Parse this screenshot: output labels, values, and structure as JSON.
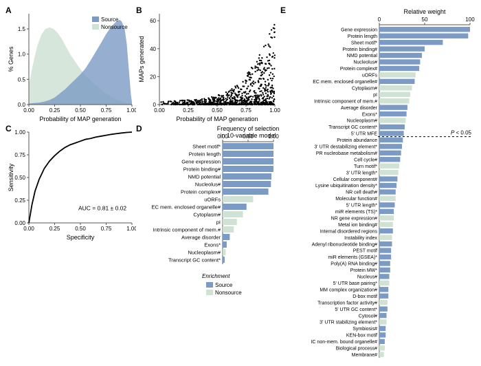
{
  "colors": {
    "source": "#7c9bc4",
    "nonsource": "#cfe2d4",
    "axis": "#555555",
    "text": "#000000",
    "grid": "#e0e0e0",
    "scatter": "#000000",
    "dash": "#000000",
    "bg": "#ffffff"
  },
  "panelLabels": {
    "A": "A",
    "B": "B",
    "C": "C",
    "D": "D",
    "E": "E"
  },
  "panelA": {
    "type": "area",
    "xLabel": "Probability of MAP generation",
    "yLabel": "% Genes",
    "xlim": [
      0,
      1
    ],
    "ylim": [
      0,
      1.8
    ],
    "xticks": [
      0,
      0.25,
      0.5,
      0.75,
      1.0
    ],
    "yticks": [
      0,
      0.5,
      1.0,
      1.5
    ],
    "legend": {
      "source": "Source",
      "nonsource": "Nonsource"
    },
    "sourceCurve": [
      [
        0.0,
        0.02
      ],
      [
        0.05,
        0.03
      ],
      [
        0.1,
        0.04
      ],
      [
        0.15,
        0.06
      ],
      [
        0.2,
        0.09
      ],
      [
        0.25,
        0.14
      ],
      [
        0.3,
        0.22
      ],
      [
        0.35,
        0.3
      ],
      [
        0.4,
        0.4
      ],
      [
        0.45,
        0.5
      ],
      [
        0.5,
        0.6
      ],
      [
        0.55,
        0.72
      ],
      [
        0.6,
        0.88
      ],
      [
        0.65,
        1.05
      ],
      [
        0.7,
        1.22
      ],
      [
        0.75,
        1.4
      ],
      [
        0.8,
        1.55
      ],
      [
        0.85,
        1.65
      ],
      [
        0.88,
        1.68
      ],
      [
        0.9,
        1.65
      ],
      [
        0.93,
        1.5
      ],
      [
        0.95,
        1.2
      ],
      [
        0.97,
        0.7
      ],
      [
        0.99,
        0.2
      ],
      [
        1.0,
        0.05
      ]
    ],
    "nonsourceCurve": [
      [
        0.0,
        0.4
      ],
      [
        0.04,
        0.8
      ],
      [
        0.08,
        1.15
      ],
      [
        0.12,
        1.38
      ],
      [
        0.16,
        1.5
      ],
      [
        0.2,
        1.53
      ],
      [
        0.24,
        1.5
      ],
      [
        0.28,
        1.42
      ],
      [
        0.32,
        1.3
      ],
      [
        0.36,
        1.15
      ],
      [
        0.4,
        1.0
      ],
      [
        0.45,
        0.85
      ],
      [
        0.5,
        0.7
      ],
      [
        0.55,
        0.58
      ],
      [
        0.6,
        0.48
      ],
      [
        0.65,
        0.38
      ],
      [
        0.7,
        0.3
      ],
      [
        0.75,
        0.22
      ],
      [
        0.8,
        0.15
      ],
      [
        0.85,
        0.1
      ],
      [
        0.9,
        0.06
      ],
      [
        0.95,
        0.03
      ],
      [
        1.0,
        0.01
      ]
    ]
  },
  "panelB": {
    "type": "scatter",
    "xLabel": "Probability of MAP generation",
    "yLabel": "MAPs generated",
    "xlim": [
      0,
      1
    ],
    "ylim": [
      0,
      65
    ],
    "xticks": [
      0,
      0.25,
      0.5,
      0.75,
      1.0
    ],
    "yticks": [
      0,
      20,
      40,
      60
    ],
    "marker_size": 1.2,
    "nRandom": 900
  },
  "panelC": {
    "type": "line",
    "xLabel": "Specificity",
    "yLabel": "Sensitivity",
    "xlim": [
      0,
      1
    ],
    "ylim": [
      0,
      1
    ],
    "xticks": [
      0,
      0.25,
      0.5,
      0.75,
      1.0
    ],
    "yticks": [
      0,
      0.25,
      0.5,
      0.75,
      1.0
    ],
    "aucText": "AUC = 0.81 ± 0.02",
    "curve": [
      [
        0.0,
        0.0
      ],
      [
        0.03,
        0.2
      ],
      [
        0.06,
        0.35
      ],
      [
        0.1,
        0.48
      ],
      [
        0.15,
        0.6
      ],
      [
        0.2,
        0.68
      ],
      [
        0.25,
        0.74
      ],
      [
        0.3,
        0.79
      ],
      [
        0.35,
        0.83
      ],
      [
        0.4,
        0.86
      ],
      [
        0.45,
        0.88
      ],
      [
        0.5,
        0.9
      ],
      [
        0.55,
        0.92
      ],
      [
        0.6,
        0.93
      ],
      [
        0.65,
        0.945
      ],
      [
        0.7,
        0.955
      ],
      [
        0.75,
        0.965
      ],
      [
        0.8,
        0.975
      ],
      [
        0.85,
        0.983
      ],
      [
        0.9,
        0.99
      ],
      [
        0.95,
        0.996
      ],
      [
        1.0,
        1.0
      ]
    ]
  },
  "panelD": {
    "type": "hbar",
    "xLabel": "Frequency of selection\nin 10-variable model",
    "xlim": [
      0,
      1
    ],
    "xticks": [
      0,
      0.5,
      1.0
    ],
    "bars": [
      {
        "label": "Sheet motif*",
        "v": 1.0,
        "c": "source"
      },
      {
        "label": "Protein length",
        "v": 1.0,
        "c": "source"
      },
      {
        "label": "Gene expression",
        "v": 1.0,
        "c": "source"
      },
      {
        "label": "Protein binding#",
        "v": 1.0,
        "c": "source"
      },
      {
        "label": "NMD potential",
        "v": 0.96,
        "c": "source"
      },
      {
        "label": "Nucleolus#",
        "v": 0.95,
        "c": "source"
      },
      {
        "label": "Protein complex#",
        "v": 0.9,
        "c": "source"
      },
      {
        "label": "uORFs",
        "v": 0.6,
        "c": "nonsource"
      },
      {
        "label": "EC mem. enclosed organelle#",
        "v": 0.47,
        "c": "source"
      },
      {
        "label": "Cytoplasm#",
        "v": 0.4,
        "c": "nonsource"
      },
      {
        "label": "pI",
        "v": 0.28,
        "c": "nonsource"
      },
      {
        "label": "Intrinsic component of mem.#",
        "v": 0.22,
        "c": "nonsource"
      },
      {
        "label": "Average disorder",
        "v": 0.14,
        "c": "source"
      },
      {
        "label": "Exons*",
        "v": 0.08,
        "c": "source"
      },
      {
        "label": "Nucleoplasm#",
        "v": 0.06,
        "c": "nonsource"
      },
      {
        "label": "Transcript GC content*",
        "v": 0.04,
        "c": "source"
      }
    ]
  },
  "panelE": {
    "type": "hbar",
    "xLabel": "Relative weight",
    "xlim": [
      0,
      100
    ],
    "xticks": [
      0,
      50,
      100
    ],
    "pLabel": "P < 0.05",
    "pCutIndex": 17,
    "bars": [
      {
        "label": "Gene expression",
        "v": 100,
        "c": "source"
      },
      {
        "label": "Protein length",
        "v": 98,
        "c": "source"
      },
      {
        "label": "Sheet motif*",
        "v": 70,
        "c": "source"
      },
      {
        "label": "Protein binding#",
        "v": 50,
        "c": "source"
      },
      {
        "label": "NMD potential",
        "v": 47,
        "c": "source"
      },
      {
        "label": "Nucleolus#",
        "v": 45,
        "c": "source"
      },
      {
        "label": "Protein complex#",
        "v": 44,
        "c": "source"
      },
      {
        "label": "uORFs",
        "v": 40,
        "c": "nonsource"
      },
      {
        "label": "EC mem. enclosed organelle#",
        "v": 39,
        "c": "source"
      },
      {
        "label": "Cytoplasm#",
        "v": 36,
        "c": "nonsource"
      },
      {
        "label": "pI",
        "v": 34,
        "c": "nonsource"
      },
      {
        "label": "Intrinsic component of mem.#",
        "v": 33,
        "c": "nonsource"
      },
      {
        "label": "Average disorder",
        "v": 31,
        "c": "source"
      },
      {
        "label": "Exons*",
        "v": 30,
        "c": "source"
      },
      {
        "label": "Nucleoplasm#",
        "v": 29,
        "c": "nonsource"
      },
      {
        "label": "Transcript GC content*",
        "v": 28,
        "c": "source"
      },
      {
        "label": "5' UTR MFE",
        "v": 27,
        "c": "source"
      },
      {
        "label": "Protein abundance",
        "v": 26,
        "c": "source"
      },
      {
        "label": "3' UTR destabilizing element*",
        "v": 25,
        "c": "source"
      },
      {
        "label": "PR nucleobase metabolism#",
        "v": 24,
        "c": "source"
      },
      {
        "label": "Cell cycle#",
        "v": 23,
        "c": "source"
      },
      {
        "label": "Turn motif*",
        "v": 22,
        "c": "nonsource"
      },
      {
        "label": "3' UTR length*",
        "v": 21,
        "c": "nonsource"
      },
      {
        "label": "Cellular component#",
        "v": 20,
        "c": "source"
      },
      {
        "label": "Lysine ubiquitination density*",
        "v": 19,
        "c": "source"
      },
      {
        "label": "NR cell death#",
        "v": 18,
        "c": "source"
      },
      {
        "label": "Molecular function#",
        "v": 18,
        "c": "nonsource"
      },
      {
        "label": "5' UTR length*",
        "v": 17,
        "c": "source"
      },
      {
        "label": "miR elements (TS)*",
        "v": 16,
        "c": "source"
      },
      {
        "label": "NR gene expression#",
        "v": 16,
        "c": "nonsource"
      },
      {
        "label": "Metal ion binding#",
        "v": 15,
        "c": "nonsource"
      },
      {
        "label": "Internal disordered regions",
        "v": 15,
        "c": "source"
      },
      {
        "label": "Instability index",
        "v": 14,
        "c": "nonsource"
      },
      {
        "label": "Adenyl ribonucleotide binding#",
        "v": 14,
        "c": "source"
      },
      {
        "label": "PEST motif",
        "v": 13,
        "c": "source"
      },
      {
        "label": "miR elements (GSEA)*",
        "v": 13,
        "c": "source"
      },
      {
        "label": "Poly(A) RNA binding#",
        "v": 12,
        "c": "source"
      },
      {
        "label": "Protein MW*",
        "v": 12,
        "c": "source"
      },
      {
        "label": "Nucleus#",
        "v": 11,
        "c": "source"
      },
      {
        "label": "5' UTR base pairing*",
        "v": 11,
        "c": "nonsource"
      },
      {
        "label": "MM complex organization#",
        "v": 10,
        "c": "source"
      },
      {
        "label": "D-box motif",
        "v": 10,
        "c": "source"
      },
      {
        "label": "Transcription factor activity#",
        "v": 9,
        "c": "nonsource"
      },
      {
        "label": "5' UTR GC content*",
        "v": 9,
        "c": "source"
      },
      {
        "label": "Cytosol#",
        "v": 8,
        "c": "source"
      },
      {
        "label": "3' UTR stabilizing element*",
        "v": 8,
        "c": "nonsource"
      },
      {
        "label": "Symbiosis#",
        "v": 7,
        "c": "source"
      },
      {
        "label": "KEN-box motif",
        "v": 7,
        "c": "source"
      },
      {
        "label": "IC non-mem. bound organelle#",
        "v": 6,
        "c": "source"
      },
      {
        "label": "Biological process#",
        "v": 6,
        "c": "nonsource"
      },
      {
        "label": "Membrane#",
        "v": 5,
        "c": "nonsource"
      }
    ]
  },
  "legendE": {
    "title": "Enrichment",
    "source": "Source",
    "nonsource": "Nonsource"
  }
}
